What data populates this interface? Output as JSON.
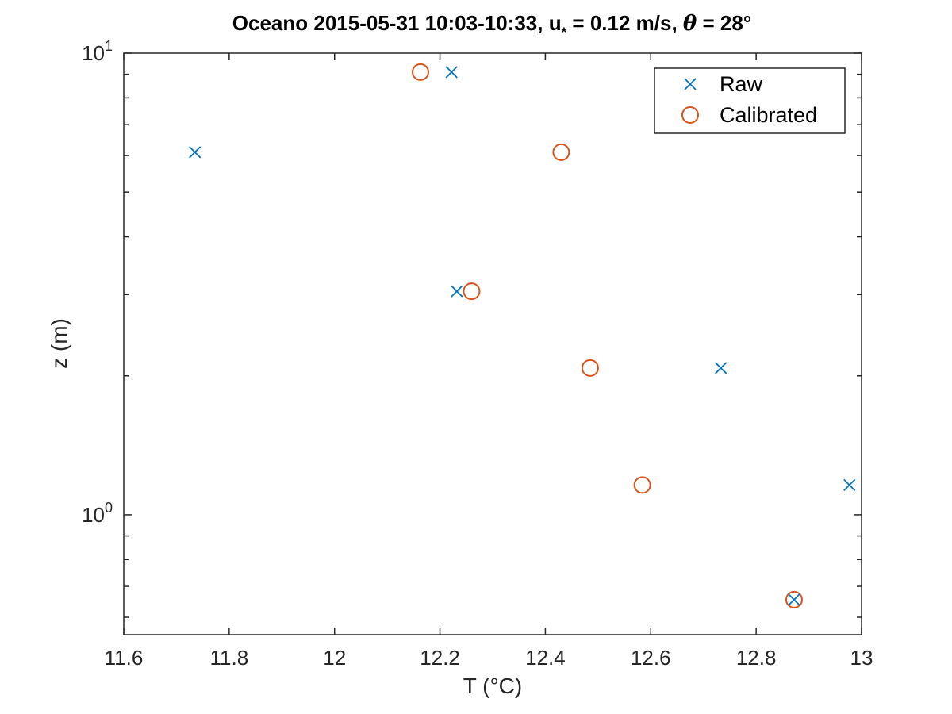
{
  "chart_data": {
    "type": "scatter",
    "title": {
      "main": "Oceano 2015-05-31 10:03-10:33, u",
      "sub": "*",
      "mid": " = 0.12 m/s, ",
      "symbol": "θ",
      "end": " = 28°"
    },
    "xlabel": "T (°C)",
    "ylabel": "z (m)",
    "xlim": [
      11.6,
      13.0
    ],
    "ylim": [
      0.55,
      10
    ],
    "yscale": "log",
    "grid": false,
    "legend_position": "top-right",
    "xticks": [
      "11.6",
      "11.8",
      "12",
      "12.2",
      "12.4",
      "12.6",
      "12.8",
      "13"
    ],
    "yticks": [
      {
        "base": "10",
        "exp": "0"
      },
      {
        "base": "10",
        "exp": "1"
      }
    ],
    "series": [
      {
        "name": "Raw",
        "marker": "x",
        "color": "#0072BD",
        "points": [
          {
            "x": 11.735,
            "y": 6.1
          },
          {
            "x": 12.222,
            "y": 9.1
          },
          {
            "x": 12.232,
            "y": 3.05
          },
          {
            "x": 12.733,
            "y": 2.08
          },
          {
            "x": 12.977,
            "y": 1.16
          },
          {
            "x": 12.872,
            "y": 0.655
          }
        ]
      },
      {
        "name": "Calibrated",
        "marker": "o",
        "color": "#D95319",
        "points": [
          {
            "x": 12.163,
            "y": 9.1
          },
          {
            "x": 12.43,
            "y": 6.1
          },
          {
            "x": 12.26,
            "y": 3.05
          },
          {
            "x": 12.485,
            "y": 2.08
          },
          {
            "x": 12.584,
            "y": 1.16
          },
          {
            "x": 12.872,
            "y": 0.655
          }
        ]
      }
    ]
  }
}
